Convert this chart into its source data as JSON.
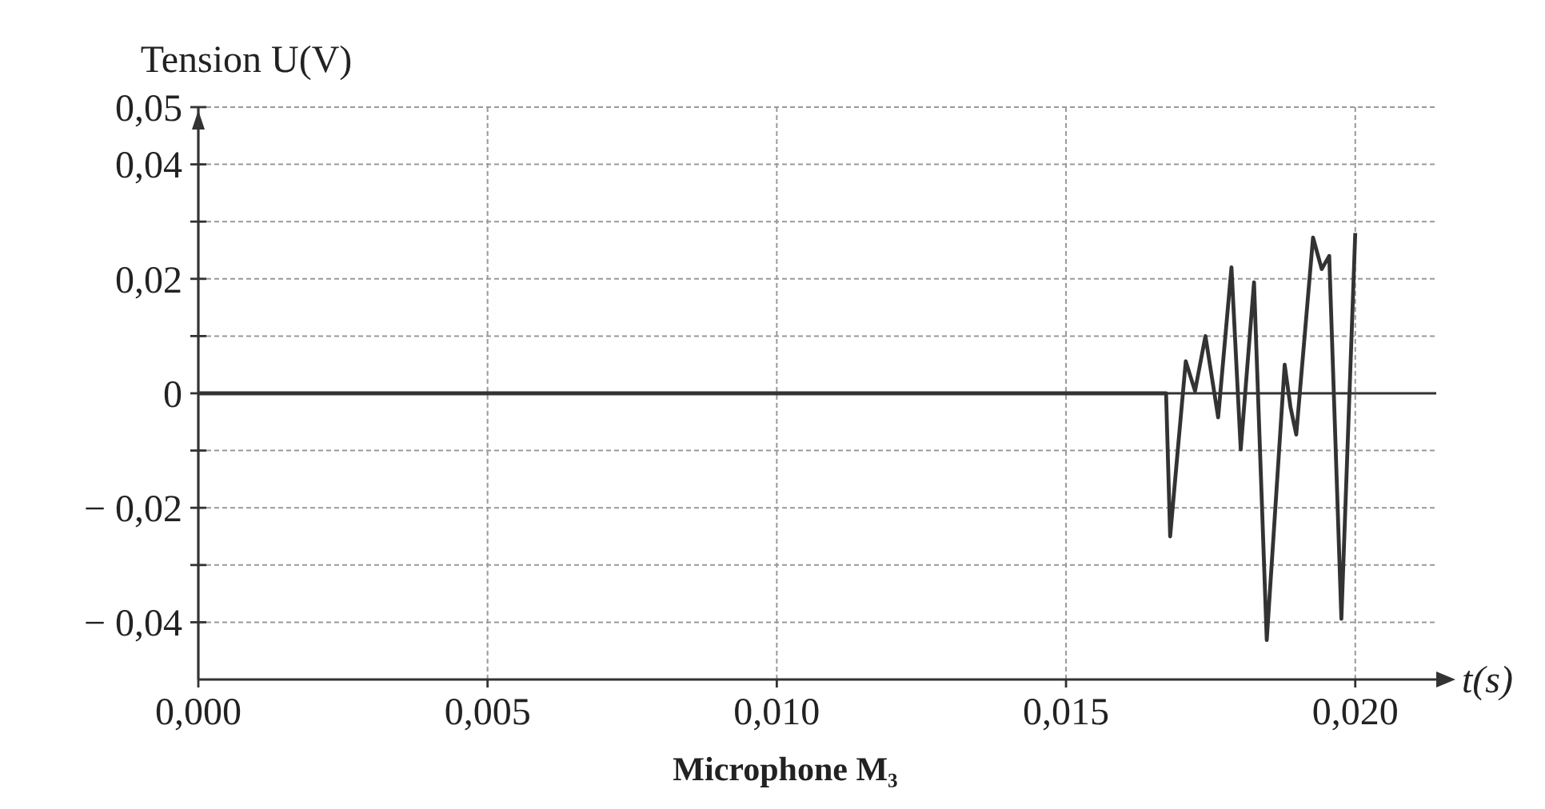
{
  "chart_data": {
    "type": "line",
    "title": "Microphone M₃",
    "xlabel": "t(s)",
    "ylabel": "Tension U(V)",
    "xlim": [
      0,
      0.0214
    ],
    "ylim": [
      -0.05,
      0.05
    ],
    "xticks": [
      {
        "value": 0,
        "label": "0,000"
      },
      {
        "value": 0.005,
        "label": "0,005"
      },
      {
        "value": 0.01,
        "label": "0,010"
      },
      {
        "value": 0.015,
        "label": "0,015"
      },
      {
        "value": 0.02,
        "label": "0,020"
      }
    ],
    "yticks": [
      {
        "value": -0.04,
        "label": "− 0,04"
      },
      {
        "value": -0.03,
        "label": null
      },
      {
        "value": -0.02,
        "label": "− 0,02"
      },
      {
        "value": -0.01,
        "label": null
      },
      {
        "value": 0,
        "label": "0"
      },
      {
        "value": 0.01,
        "label": null
      },
      {
        "value": 0.02,
        "label": "0,02"
      },
      {
        "value": 0.03,
        "label": null
      },
      {
        "value": 0.04,
        "label": "0,04"
      },
      {
        "value": 0.05,
        "label": "0,05"
      }
    ],
    "grid": true,
    "marker": "none",
    "line_style": "solid",
    "series": [
      {
        "color": "#333333",
        "x": [
          0,
          0.01673,
          0.0168,
          0.01694,
          0.01707,
          0.01723,
          0.01741,
          0.01763,
          0.01786,
          0.01802,
          0.01825,
          0.01847,
          0.01878,
          0.01888,
          0.01898,
          0.01927,
          0.01942,
          0.01955,
          0.01976,
          0.02
        ],
        "values": [
          0,
          0,
          -0.025,
          -0.009,
          0.0056,
          0.0004,
          0.01,
          -0.0042,
          0.022,
          -0.0098,
          0.0194,
          -0.0431,
          0.005,
          -0.0024,
          -0.0072,
          0.0272,
          0.0217,
          0.024,
          -0.0394,
          0.028
        ]
      }
    ]
  }
}
